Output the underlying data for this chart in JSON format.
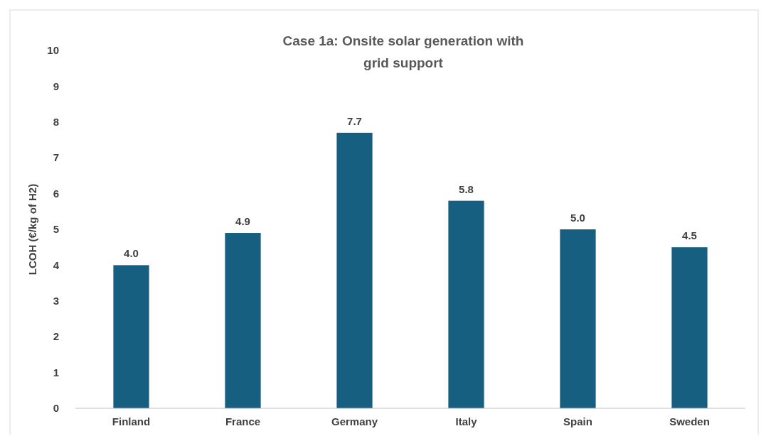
{
  "chart_data": {
    "type": "bar",
    "title": "Case 1a: Onsite solar generation with grid support",
    "ylabel": "LCOH (€/kg of H2)",
    "categories": [
      "Finland",
      "France",
      "Germany",
      "Italy",
      "Spain",
      "Sweden"
    ],
    "values": [
      4.0,
      4.9,
      7.7,
      5.8,
      5.0,
      4.5
    ],
    "value_labels": [
      "4.0",
      "4.9",
      "7.7",
      "5.8",
      "5.0",
      "4.5"
    ],
    "color": "#175f80",
    "ylim": [
      0,
      10
    ],
    "yticks": [
      0,
      1,
      2,
      3,
      4,
      5,
      6,
      7,
      8,
      9,
      10
    ]
  }
}
